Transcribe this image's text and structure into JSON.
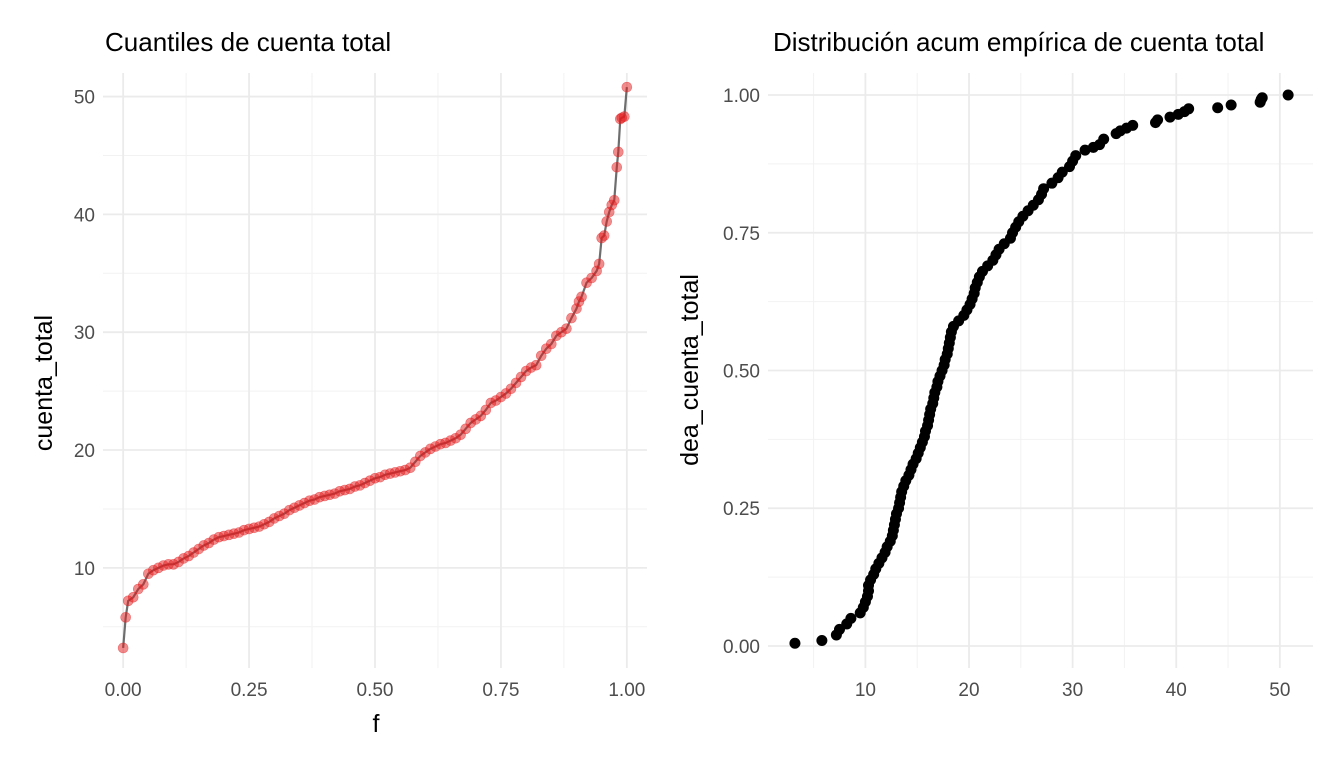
{
  "chart_data": [
    {
      "type": "scatter",
      "title": "Cuantiles de cuenta total",
      "xlabel": "f",
      "ylabel": "cuenta_total",
      "xlim": [
        -0.04,
        1.04
      ],
      "ylim": [
        1.5,
        52
      ],
      "x_ticks": [
        0,
        0.25,
        0.5,
        0.75,
        1
      ],
      "x_tick_labels": [
        "0.00",
        "0.25",
        "0.50",
        "0.75",
        "1.00"
      ],
      "y_ticks": [
        10,
        20,
        30,
        40,
        50
      ],
      "y_tick_labels": [
        "10",
        "20",
        "30",
        "40",
        "50"
      ],
      "grid": true,
      "line_color": "#555555",
      "point_color": "#e41a1c",
      "points": [
        [
          0.0,
          3.2
        ],
        [
          0.005,
          5.8
        ],
        [
          0.01,
          7.2
        ],
        [
          0.02,
          7.5
        ],
        [
          0.03,
          8.2
        ],
        [
          0.04,
          8.6
        ],
        [
          0.05,
          9.5
        ],
        [
          0.06,
          9.8
        ],
        [
          0.07,
          10.0
        ],
        [
          0.08,
          10.2
        ],
        [
          0.09,
          10.3
        ],
        [
          0.1,
          10.3
        ],
        [
          0.11,
          10.5
        ],
        [
          0.12,
          10.8
        ],
        [
          0.13,
          11.0
        ],
        [
          0.14,
          11.3
        ],
        [
          0.15,
          11.6
        ],
        [
          0.16,
          11.9
        ],
        [
          0.17,
          12.1
        ],
        [
          0.18,
          12.4
        ],
        [
          0.19,
          12.6
        ],
        [
          0.2,
          12.7
        ],
        [
          0.21,
          12.8
        ],
        [
          0.22,
          12.9
        ],
        [
          0.23,
          13.0
        ],
        [
          0.24,
          13.2
        ],
        [
          0.25,
          13.3
        ],
        [
          0.26,
          13.4
        ],
        [
          0.27,
          13.5
        ],
        [
          0.28,
          13.7
        ],
        [
          0.29,
          13.9
        ],
        [
          0.3,
          14.2
        ],
        [
          0.31,
          14.4
        ],
        [
          0.32,
          14.6
        ],
        [
          0.33,
          14.9
        ],
        [
          0.34,
          15.1
        ],
        [
          0.35,
          15.3
        ],
        [
          0.36,
          15.5
        ],
        [
          0.37,
          15.7
        ],
        [
          0.38,
          15.8
        ],
        [
          0.39,
          16.0
        ],
        [
          0.4,
          16.1
        ],
        [
          0.41,
          16.2
        ],
        [
          0.42,
          16.3
        ],
        [
          0.43,
          16.5
        ],
        [
          0.44,
          16.6
        ],
        [
          0.45,
          16.7
        ],
        [
          0.46,
          16.9
        ],
        [
          0.47,
          17.0
        ],
        [
          0.48,
          17.2
        ],
        [
          0.49,
          17.4
        ],
        [
          0.5,
          17.6
        ],
        [
          0.51,
          17.7
        ],
        [
          0.52,
          17.9
        ],
        [
          0.53,
          18.0
        ],
        [
          0.54,
          18.1
        ],
        [
          0.55,
          18.2
        ],
        [
          0.56,
          18.3
        ],
        [
          0.57,
          18.5
        ],
        [
          0.58,
          19.0
        ],
        [
          0.59,
          19.5
        ],
        [
          0.6,
          19.8
        ],
        [
          0.61,
          20.1
        ],
        [
          0.62,
          20.3
        ],
        [
          0.63,
          20.5
        ],
        [
          0.64,
          20.6
        ],
        [
          0.65,
          20.8
        ],
        [
          0.66,
          21.0
        ],
        [
          0.67,
          21.3
        ],
        [
          0.68,
          21.8
        ],
        [
          0.69,
          22.3
        ],
        [
          0.7,
          22.6
        ],
        [
          0.71,
          22.9
        ],
        [
          0.72,
          23.4
        ],
        [
          0.73,
          24.0
        ],
        [
          0.74,
          24.2
        ],
        [
          0.75,
          24.5
        ],
        [
          0.76,
          24.8
        ],
        [
          0.77,
          25.2
        ],
        [
          0.78,
          25.7
        ],
        [
          0.79,
          26.2
        ],
        [
          0.8,
          26.7
        ],
        [
          0.81,
          27.0
        ],
        [
          0.82,
          27.2
        ],
        [
          0.83,
          28.0
        ],
        [
          0.84,
          28.6
        ],
        [
          0.85,
          29.0
        ],
        [
          0.86,
          29.7
        ],
        [
          0.87,
          30.0
        ],
        [
          0.88,
          30.3
        ],
        [
          0.89,
          31.2
        ],
        [
          0.9,
          32.0
        ],
        [
          0.905,
          32.6
        ],
        [
          0.91,
          33.0
        ],
        [
          0.92,
          34.2
        ],
        [
          0.93,
          34.6
        ],
        [
          0.94,
          35.2
        ],
        [
          0.945,
          35.8
        ],
        [
          0.95,
          38.0
        ],
        [
          0.955,
          38.2
        ],
        [
          0.96,
          39.4
        ],
        [
          0.965,
          40.2
        ],
        [
          0.97,
          40.8
        ],
        [
          0.975,
          41.2
        ],
        [
          0.98,
          44.0
        ],
        [
          0.983,
          45.3
        ],
        [
          0.987,
          48.1
        ],
        [
          0.99,
          48.2
        ],
        [
          0.995,
          48.3
        ],
        [
          1.0,
          50.8
        ]
      ]
    },
    {
      "type": "scatter",
      "title": "Distribución acum empírica de cuenta total",
      "xlabel": "",
      "ylabel": "dea_cuenta_total",
      "xlim": [
        0.6,
        53.2
      ],
      "ylim": [
        -0.04,
        1.04
      ],
      "x_ticks": [
        10,
        20,
        30,
        40,
        50
      ],
      "x_tick_labels": [
        "10",
        "20",
        "30",
        "40",
        "50"
      ],
      "y_ticks": [
        0,
        0.25,
        0.5,
        0.75,
        1
      ],
      "y_tick_labels": [
        "0.00",
        "0.25",
        "0.50",
        "0.75",
        "1.00"
      ],
      "grid": true,
      "point_color": "#000000",
      "points": [
        [
          3.2,
          0.005
        ],
        [
          5.8,
          0.01
        ],
        [
          7.2,
          0.02
        ],
        [
          7.5,
          0.03
        ],
        [
          8.2,
          0.04
        ],
        [
          8.6,
          0.05
        ],
        [
          9.5,
          0.06
        ],
        [
          9.8,
          0.07
        ],
        [
          10.0,
          0.08
        ],
        [
          10.2,
          0.09
        ],
        [
          10.3,
          0.1
        ],
        [
          10.3,
          0.11
        ],
        [
          10.5,
          0.12
        ],
        [
          10.8,
          0.13
        ],
        [
          11.0,
          0.14
        ],
        [
          11.3,
          0.15
        ],
        [
          11.6,
          0.16
        ],
        [
          11.9,
          0.17
        ],
        [
          12.1,
          0.18
        ],
        [
          12.4,
          0.19
        ],
        [
          12.6,
          0.2
        ],
        [
          12.7,
          0.21
        ],
        [
          12.8,
          0.22
        ],
        [
          12.9,
          0.23
        ],
        [
          13.0,
          0.24
        ],
        [
          13.2,
          0.25
        ],
        [
          13.3,
          0.26
        ],
        [
          13.4,
          0.27
        ],
        [
          13.5,
          0.28
        ],
        [
          13.7,
          0.29
        ],
        [
          13.9,
          0.3
        ],
        [
          14.2,
          0.31
        ],
        [
          14.4,
          0.32
        ],
        [
          14.6,
          0.33
        ],
        [
          14.9,
          0.34
        ],
        [
          15.1,
          0.35
        ],
        [
          15.3,
          0.36
        ],
        [
          15.5,
          0.37
        ],
        [
          15.7,
          0.38
        ],
        [
          15.8,
          0.39
        ],
        [
          16.0,
          0.4
        ],
        [
          16.1,
          0.41
        ],
        [
          16.2,
          0.42
        ],
        [
          16.3,
          0.43
        ],
        [
          16.5,
          0.44
        ],
        [
          16.6,
          0.45
        ],
        [
          16.7,
          0.46
        ],
        [
          16.9,
          0.47
        ],
        [
          17.0,
          0.48
        ],
        [
          17.2,
          0.49
        ],
        [
          17.4,
          0.5
        ],
        [
          17.6,
          0.51
        ],
        [
          17.7,
          0.52
        ],
        [
          17.9,
          0.53
        ],
        [
          18.0,
          0.54
        ],
        [
          18.1,
          0.55
        ],
        [
          18.2,
          0.56
        ],
        [
          18.3,
          0.57
        ],
        [
          18.5,
          0.58
        ],
        [
          19.0,
          0.59
        ],
        [
          19.5,
          0.6
        ],
        [
          19.8,
          0.61
        ],
        [
          20.1,
          0.62
        ],
        [
          20.3,
          0.63
        ],
        [
          20.5,
          0.64
        ],
        [
          20.6,
          0.65
        ],
        [
          20.8,
          0.66
        ],
        [
          21.0,
          0.67
        ],
        [
          21.3,
          0.68
        ],
        [
          21.8,
          0.69
        ],
        [
          22.3,
          0.7
        ],
        [
          22.6,
          0.71
        ],
        [
          22.9,
          0.72
        ],
        [
          23.4,
          0.73
        ],
        [
          24.0,
          0.74
        ],
        [
          24.2,
          0.75
        ],
        [
          24.5,
          0.76
        ],
        [
          24.8,
          0.77
        ],
        [
          25.2,
          0.78
        ],
        [
          25.7,
          0.79
        ],
        [
          26.2,
          0.8
        ],
        [
          26.7,
          0.81
        ],
        [
          27.0,
          0.82
        ],
        [
          27.2,
          0.83
        ],
        [
          28.0,
          0.84
        ],
        [
          28.6,
          0.85
        ],
        [
          29.0,
          0.86
        ],
        [
          29.7,
          0.87
        ],
        [
          30.0,
          0.88
        ],
        [
          30.3,
          0.89
        ],
        [
          31.2,
          0.9
        ],
        [
          32.0,
          0.905
        ],
        [
          32.6,
          0.91
        ],
        [
          33.0,
          0.92
        ],
        [
          34.2,
          0.93
        ],
        [
          34.6,
          0.935
        ],
        [
          35.2,
          0.94
        ],
        [
          35.8,
          0.945
        ],
        [
          38.0,
          0.95
        ],
        [
          38.2,
          0.955
        ],
        [
          39.4,
          0.96
        ],
        [
          40.2,
          0.965
        ],
        [
          40.8,
          0.97
        ],
        [
          41.2,
          0.975
        ],
        [
          44.0,
          0.977
        ],
        [
          45.3,
          0.982
        ],
        [
          48.1,
          0.987
        ],
        [
          48.2,
          0.992
        ],
        [
          48.3,
          0.995
        ],
        [
          50.8,
          1.0
        ]
      ]
    }
  ]
}
